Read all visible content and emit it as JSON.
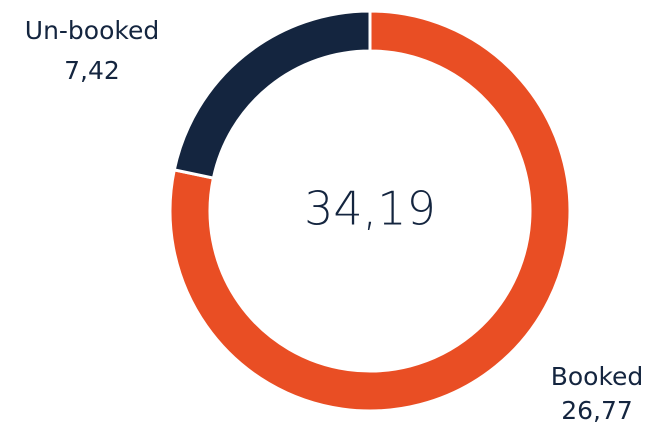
{
  "chart_data": {
    "type": "donut",
    "categories": [
      "Booked",
      "Un-booked"
    ],
    "values": [
      26.77,
      7.42
    ],
    "value_labels": [
      "26,77",
      "7,42"
    ],
    "colors": [
      "#e94e24",
      "#14253f"
    ],
    "center_text": "34,19"
  }
}
